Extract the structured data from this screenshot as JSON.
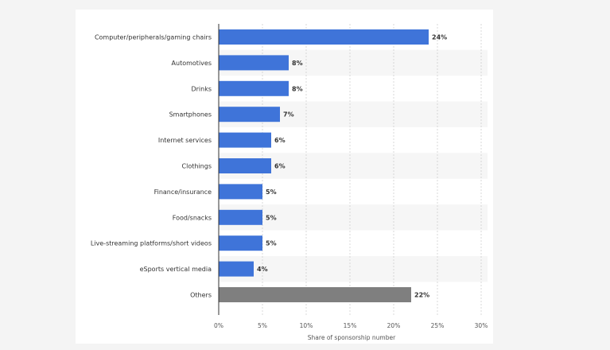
{
  "chart_data": {
    "type": "bar",
    "orientation": "horizontal",
    "categories": [
      "Computer/peripherals/gaming chairs",
      "Automotives",
      "Drinks",
      "Smartphones",
      "Internet services",
      "Clothings",
      "Finance/insurance",
      "Food/snacks",
      "Live-streaming platforms/short videos",
      "eSports vertical media",
      "Others"
    ],
    "values": [
      24,
      8,
      8,
      7,
      6,
      6,
      5,
      5,
      5,
      4,
      22
    ],
    "value_labels": [
      "24%",
      "8%",
      "8%",
      "7%",
      "6%",
      "6%",
      "5%",
      "5%",
      "5%",
      "4%",
      "22%"
    ],
    "bar_colors": [
      "#3f74d9",
      "#3f74d9",
      "#3f74d9",
      "#3f74d9",
      "#3f74d9",
      "#3f74d9",
      "#3f74d9",
      "#3f74d9",
      "#3f74d9",
      "#3f74d9",
      "#7f7f7f"
    ],
    "xlim": [
      0,
      30
    ],
    "x_ticks": [
      0,
      5,
      10,
      15,
      20,
      25,
      30
    ],
    "x_tick_labels": [
      "0%",
      "5%",
      "10%",
      "15%",
      "20%",
      "25%",
      "30%"
    ],
    "xlabel": "Share of sponsorship number",
    "ylabel": "",
    "title": "",
    "grid": "vertical dashed",
    "row_banding": true
  }
}
